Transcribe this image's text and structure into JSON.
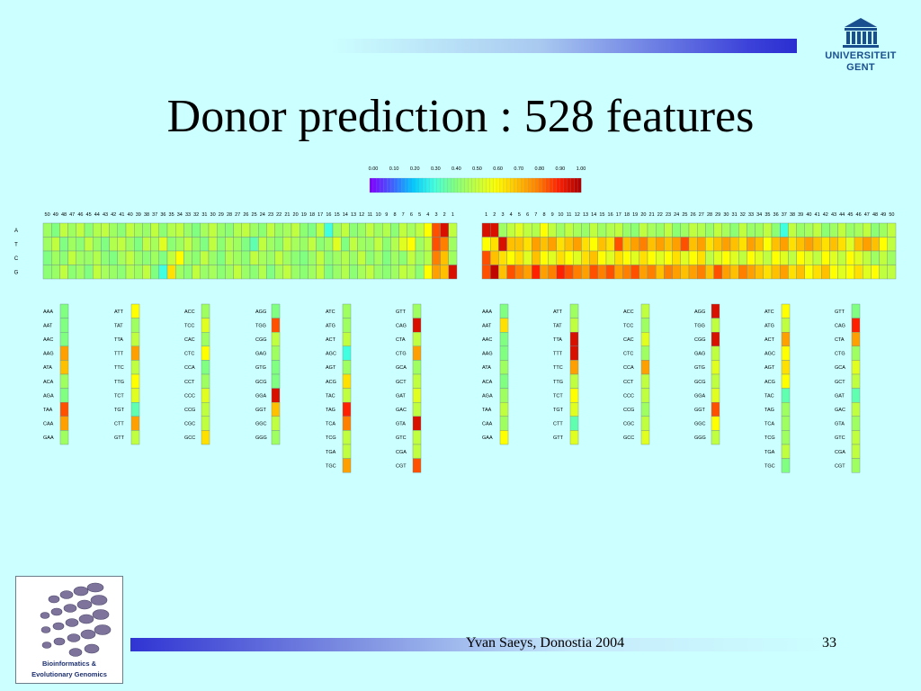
{
  "slide": {
    "title": "Donor prediction : 528 features",
    "footer_author": "Yvan Saeys, Donostia 2004",
    "page_number": "33"
  },
  "logos": {
    "university_line1": "UNIVERSITEIT",
    "university_line2": "GENT",
    "group_line1": "Bioinformatics &",
    "group_line2": "Evolutionary Genomics"
  },
  "colors": {
    "background": "#ccffff",
    "title_text": "#000000",
    "scale": [
      "#7f00ff",
      "#4060ff",
      "#00c8ff",
      "#40ffe0",
      "#80ff80",
      "#c0ff40",
      "#ffff00",
      "#ffc000",
      "#ff8000",
      "#ff2000",
      "#b00000"
    ]
  },
  "chart_data": {
    "type": "heatmap",
    "color_scale": {
      "ticks": [
        "0.00",
        "0.10",
        "0.20",
        "0.30",
        "0.40",
        "0.50",
        "0.60",
        "0.70",
        "0.80",
        "0.90",
        "1.00"
      ],
      "range": [
        0,
        1
      ]
    },
    "nucleotide_panel": {
      "rows": [
        "A",
        "T",
        "C",
        "G"
      ],
      "upstream_positions": [
        "50",
        "49",
        "48",
        "47",
        "46",
        "45",
        "44",
        "43",
        "42",
        "41",
        "40",
        "39",
        "38",
        "37",
        "36",
        "35",
        "34",
        "33",
        "32",
        "31",
        "30",
        "29",
        "28",
        "27",
        "26",
        "25",
        "24",
        "23",
        "22",
        "21",
        "20",
        "19",
        "18",
        "17",
        "16",
        "15",
        "14",
        "13",
        "12",
        "11",
        "10",
        "9",
        "8",
        "7",
        "6",
        "5",
        "4",
        "3",
        "2",
        "1"
      ],
      "downstream_positions": [
        "1",
        "2",
        "3",
        "4",
        "5",
        "6",
        "7",
        "8",
        "9",
        "10",
        "11",
        "12",
        "13",
        "14",
        "15",
        "16",
        "17",
        "18",
        "19",
        "20",
        "21",
        "22",
        "23",
        "24",
        "25",
        "26",
        "27",
        "28",
        "29",
        "30",
        "31",
        "32",
        "33",
        "34",
        "35",
        "36",
        "37",
        "38",
        "39",
        "40",
        "41",
        "42",
        "43",
        "44",
        "45",
        "46",
        "47",
        "48",
        "49",
        "50"
      ],
      "upstream_values": [
        [
          0.45,
          0.4,
          0.5,
          0.45,
          0.5,
          0.42,
          0.48,
          0.5,
          0.45,
          0.42,
          0.5,
          0.46,
          0.44,
          0.5,
          0.42,
          0.48,
          0.5,
          0.44,
          0.4,
          0.46,
          0.5,
          0.44,
          0.42,
          0.48,
          0.5,
          0.45,
          0.42,
          0.5,
          0.44,
          0.46,
          0.5,
          0.42,
          0.4,
          0.5,
          0.3,
          0.45,
          0.5,
          0.42,
          0.44,
          0.5,
          0.45,
          0.48,
          0.42,
          0.5,
          0.46,
          0.5,
          0.6,
          0.85,
          0.95,
          0.5
        ],
        [
          0.45,
          0.5,
          0.4,
          0.45,
          0.42,
          0.5,
          0.44,
          0.4,
          0.48,
          0.5,
          0.45,
          0.4,
          0.5,
          0.46,
          0.55,
          0.42,
          0.45,
          0.5,
          0.44,
          0.4,
          0.5,
          0.42,
          0.48,
          0.45,
          0.4,
          0.35,
          0.5,
          0.45,
          0.42,
          0.5,
          0.46,
          0.44,
          0.5,
          0.42,
          0.45,
          0.55,
          0.4,
          0.5,
          0.45,
          0.44,
          0.5,
          0.42,
          0.48,
          0.55,
          0.6,
          0.45,
          0.5,
          0.85,
          0.8,
          0.45
        ],
        [
          0.4,
          0.45,
          0.42,
          0.5,
          0.45,
          0.44,
          0.48,
          0.42,
          0.4,
          0.46,
          0.5,
          0.44,
          0.42,
          0.45,
          0.4,
          0.5,
          0.6,
          0.45,
          0.42,
          0.5,
          0.44,
          0.4,
          0.48,
          0.45,
          0.42,
          0.5,
          0.46,
          0.44,
          0.5,
          0.45,
          0.42,
          0.4,
          0.44,
          0.5,
          0.42,
          0.45,
          0.48,
          0.44,
          0.5,
          0.42,
          0.46,
          0.4,
          0.45,
          0.42,
          0.5,
          0.44,
          0.48,
          0.8,
          0.7,
          0.45
        ],
        [
          0.42,
          0.44,
          0.5,
          0.42,
          0.45,
          0.4,
          0.5,
          0.46,
          0.44,
          0.42,
          0.48,
          0.45,
          0.5,
          0.4,
          0.3,
          0.65,
          0.45,
          0.42,
          0.5,
          0.44,
          0.46,
          0.42,
          0.45,
          0.5,
          0.44,
          0.42,
          0.48,
          0.4,
          0.46,
          0.5,
          0.44,
          0.42,
          0.45,
          0.5,
          0.4,
          0.44,
          0.48,
          0.42,
          0.46,
          0.5,
          0.44,
          0.42,
          0.45,
          0.5,
          0.48,
          0.42,
          0.6,
          0.75,
          0.7,
          0.95
        ]
      ],
      "downstream_values": [
        [
          0.95,
          0.95,
          0.45,
          0.5,
          0.55,
          0.5,
          0.48,
          0.6,
          0.5,
          0.45,
          0.5,
          0.46,
          0.44,
          0.5,
          0.45,
          0.48,
          0.5,
          0.44,
          0.42,
          0.5,
          0.46,
          0.44,
          0.5,
          0.42,
          0.45,
          0.5,
          0.48,
          0.44,
          0.5,
          0.46,
          0.42,
          0.5,
          0.44,
          0.45,
          0.5,
          0.42,
          0.3,
          0.5,
          0.44,
          0.46,
          0.5,
          0.42,
          0.45,
          0.5,
          0.44,
          0.46,
          0.5,
          0.42,
          0.45,
          0.5
        ],
        [
          0.6,
          0.65,
          0.95,
          0.7,
          0.7,
          0.65,
          0.75,
          0.7,
          0.75,
          0.65,
          0.7,
          0.75,
          0.65,
          0.6,
          0.7,
          0.65,
          0.85,
          0.7,
          0.75,
          0.8,
          0.7,
          0.75,
          0.7,
          0.75,
          0.85,
          0.7,
          0.75,
          0.65,
          0.7,
          0.75,
          0.7,
          0.65,
          0.75,
          0.7,
          0.6,
          0.7,
          0.75,
          0.65,
          0.7,
          0.75,
          0.7,
          0.65,
          0.7,
          0.65,
          0.55,
          0.7,
          0.75,
          0.7,
          0.6,
          0.5
        ],
        [
          0.85,
          0.7,
          0.65,
          0.6,
          0.65,
          0.55,
          0.7,
          0.6,
          0.55,
          0.65,
          0.6,
          0.55,
          0.65,
          0.7,
          0.6,
          0.55,
          0.65,
          0.6,
          0.55,
          0.65,
          0.6,
          0.55,
          0.6,
          0.65,
          0.55,
          0.6,
          0.65,
          0.5,
          0.55,
          0.6,
          0.55,
          0.5,
          0.6,
          0.55,
          0.5,
          0.6,
          0.55,
          0.5,
          0.6,
          0.55,
          0.5,
          0.6,
          0.55,
          0.5,
          0.6,
          0.55,
          0.5,
          0.45,
          0.5,
          0.45
        ],
        [
          0.85,
          0.98,
          0.7,
          0.85,
          0.8,
          0.75,
          0.9,
          0.75,
          0.8,
          0.9,
          0.85,
          0.8,
          0.75,
          0.85,
          0.8,
          0.85,
          0.75,
          0.8,
          0.85,
          0.75,
          0.8,
          0.7,
          0.8,
          0.75,
          0.7,
          0.75,
          0.8,
          0.7,
          0.85,
          0.75,
          0.7,
          0.8,
          0.75,
          0.7,
          0.65,
          0.7,
          0.75,
          0.65,
          0.7,
          0.6,
          0.65,
          0.7,
          0.6,
          0.55,
          0.6,
          0.65,
          0.55,
          0.6,
          0.5,
          0.5
        ]
      ]
    },
    "trinucleotide_panels": {
      "upstream": [
        {
          "labels": [
            "AAA",
            "AAT",
            "AAC",
            "AAG",
            "ATA",
            "ACA",
            "AGA",
            "TAA",
            "CAA",
            "GAA"
          ],
          "values": [
            0.4,
            0.4,
            0.4,
            0.75,
            0.7,
            0.45,
            0.4,
            0.85,
            0.75,
            0.45
          ]
        },
        {
          "labels": [
            "ATT",
            "TAT",
            "TTA",
            "TTT",
            "TTC",
            "TTG",
            "TCT",
            "TGT",
            "CTT",
            "GTT"
          ],
          "values": [
            0.6,
            0.45,
            0.5,
            0.75,
            0.5,
            0.6,
            0.55,
            0.35,
            0.75,
            0.5
          ]
        },
        {
          "labels": [
            "ACC",
            "TCC",
            "CAC",
            "CTC",
            "CCA",
            "CCT",
            "CCC",
            "CCG",
            "CGC",
            "GCC"
          ],
          "values": [
            0.45,
            0.55,
            0.45,
            0.6,
            0.4,
            0.45,
            0.55,
            0.5,
            0.5,
            0.65
          ]
        },
        {
          "labels": [
            "AGG",
            "TGG",
            "CGG",
            "GAG",
            "GTG",
            "GCG",
            "GGA",
            "GGT",
            "GGC",
            "GGG"
          ],
          "values": [
            0.4,
            0.85,
            0.5,
            0.45,
            0.4,
            0.4,
            0.95,
            0.7,
            0.5,
            0.45
          ]
        },
        {
          "labels": [
            "ATC",
            "ATG",
            "ACT",
            "AGC",
            "AGT",
            "ACG",
            "TAC",
            "TAG",
            "TCA",
            "TCG",
            "TGA",
            "TGC"
          ],
          "values": [
            0.45,
            0.45,
            0.5,
            0.3,
            0.45,
            0.65,
            0.5,
            0.9,
            0.8,
            0.5,
            0.5,
            0.75
          ]
        },
        {
          "labels": [
            "GTT",
            "CAG",
            "CTA",
            "CTG",
            "GCA",
            "GCT",
            "GAT",
            "GAC",
            "GTA",
            "GTC",
            "CGA",
            "CGT"
          ],
          "values": [
            0.45,
            0.95,
            0.5,
            0.75,
            0.45,
            0.5,
            0.55,
            0.5,
            0.95,
            0.5,
            0.5,
            0.85
          ]
        }
      ],
      "downstream": [
        {
          "labels": [
            "AAA",
            "AAT",
            "AAC",
            "AAG",
            "ATA",
            "ACA",
            "AGA",
            "TAA",
            "CAA",
            "GAA"
          ],
          "values": [
            0.4,
            0.65,
            0.4,
            0.4,
            0.45,
            0.4,
            0.45,
            0.5,
            0.45,
            0.6
          ]
        },
        {
          "labels": [
            "ATT",
            "TAT",
            "TTA",
            "TTT",
            "TTC",
            "TTG",
            "TCT",
            "TGT",
            "CTT",
            "GTT"
          ],
          "values": [
            0.45,
            0.5,
            0.95,
            0.95,
            0.75,
            0.5,
            0.6,
            0.55,
            0.35,
            0.55
          ]
        },
        {
          "labels": [
            "ACC",
            "TCC",
            "CAC",
            "CTC",
            "CCA",
            "CCT",
            "CCC",
            "CCG",
            "CGC",
            "GCC"
          ],
          "values": [
            0.5,
            0.45,
            0.55,
            0.45,
            0.75,
            0.5,
            0.5,
            0.45,
            0.5,
            0.55
          ]
        },
        {
          "labels": [
            "AGG",
            "TGG",
            "CGG",
            "GAG",
            "GTG",
            "GCG",
            "GGA",
            "GGT",
            "GGC",
            "GGG"
          ],
          "values": [
            0.95,
            0.5,
            0.95,
            0.5,
            0.55,
            0.5,
            0.55,
            0.85,
            0.6,
            0.5
          ]
        },
        {
          "labels": [
            "ATC",
            "ATG",
            "ACT",
            "AGC",
            "AGT",
            "ACG",
            "TAC",
            "TAG",
            "TCA",
            "TCG",
            "TGA",
            "TGC"
          ],
          "values": [
            0.6,
            0.5,
            0.75,
            0.6,
            0.65,
            0.6,
            0.35,
            0.45,
            0.45,
            0.45,
            0.5,
            0.4
          ]
        },
        {
          "labels": [
            "GTT",
            "CAG",
            "CTA",
            "CTG",
            "GCA",
            "GCT",
            "GAT",
            "GAC",
            "GTA",
            "GTC",
            "CGA",
            "CGT"
          ],
          "values": [
            0.4,
            0.9,
            0.75,
            0.45,
            0.55,
            0.5,
            0.35,
            0.5,
            0.45,
            0.5,
            0.5,
            0.45
          ]
        }
      ]
    }
  }
}
